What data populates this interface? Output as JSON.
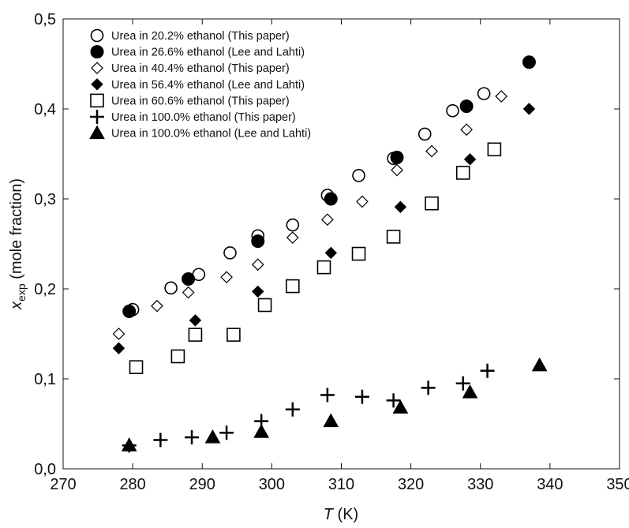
{
  "chart_data": {
    "type": "scatter",
    "xlabel": {
      "main": "T",
      "unit": " (K)"
    },
    "ylabel": {
      "main": "x",
      "sub": "exp",
      "rest": " (mole fraction)"
    },
    "xlim": [
      270,
      350
    ],
    "ylim": [
      0,
      0.5
    ],
    "xticks": [
      270,
      280,
      290,
      300,
      310,
      320,
      330,
      340,
      350
    ],
    "yticks": [
      0.0,
      0.1,
      0.2,
      0.3,
      0.4,
      0.5
    ],
    "xtick_labels": [
      "270",
      "280",
      "290",
      "300",
      "310",
      "320",
      "330",
      "340",
      "350"
    ],
    "ytick_labels": [
      "0,0",
      "0,1",
      "0,2",
      "0,3",
      "0,4",
      "0,5"
    ],
    "grid": false,
    "legend_position": "top-left",
    "series": [
      {
        "name": "Urea in 20.2% ethanol (This paper)",
        "marker": "circle-open",
        "x": [
          280.0,
          285.5,
          289.5,
          294.0,
          298.0,
          303.0,
          308.0,
          312.5,
          317.5,
          322.0,
          326.0,
          330.5
        ],
        "y": [
          0.177,
          0.201,
          0.216,
          0.24,
          0.259,
          0.271,
          0.304,
          0.326,
          0.345,
          0.372,
          0.398,
          0.417
        ]
      },
      {
        "name": "Urea in 26.6% ethanol (Lee and Lahti)",
        "marker": "circle-filled",
        "x": [
          279.5,
          288.0,
          298.0,
          308.5,
          318.0,
          328.0,
          337.0
        ],
        "y": [
          0.175,
          0.211,
          0.253,
          0.3,
          0.346,
          0.403,
          0.452
        ]
      },
      {
        "name": "Urea in 40.4% ethanol (This paper)",
        "marker": "diamond-open",
        "x": [
          278.0,
          283.5,
          288.0,
          293.5,
          298.0,
          303.0,
          308.0,
          313.0,
          318.0,
          323.0,
          328.0,
          333.0
        ],
        "y": [
          0.15,
          0.181,
          0.196,
          0.213,
          0.227,
          0.257,
          0.277,
          0.297,
          0.332,
          0.353,
          0.377,
          0.414
        ]
      },
      {
        "name": "Urea in 56.4% ethanol (Lee and Lahti)",
        "marker": "diamond-filled",
        "x": [
          278.0,
          289.0,
          298.0,
          308.5,
          318.5,
          328.5,
          337.0
        ],
        "y": [
          0.134,
          0.165,
          0.197,
          0.24,
          0.291,
          0.344,
          0.4
        ]
      },
      {
        "name": "Urea in 60.6% ethanol (This paper)",
        "marker": "square-open",
        "x": [
          280.5,
          286.5,
          289.0,
          294.5,
          299.0,
          303.0,
          307.5,
          312.5,
          317.5,
          323.0,
          327.5,
          332.0
        ],
        "y": [
          0.113,
          0.125,
          0.149,
          0.149,
          0.182,
          0.203,
          0.224,
          0.239,
          0.258,
          0.295,
          0.329,
          0.355
        ]
      },
      {
        "name": "Urea in 100.0% ethanol (This paper)",
        "marker": "plus",
        "x": [
          279.5,
          284.0,
          288.5,
          293.5,
          298.5,
          303.0,
          308.0,
          313.0,
          317.5,
          322.5,
          327.5,
          331.0
        ],
        "y": [
          0.026,
          0.032,
          0.035,
          0.04,
          0.053,
          0.066,
          0.082,
          0.08,
          0.076,
          0.09,
          0.095,
          0.109
        ]
      },
      {
        "name": "Urea in 100.0% ethanol (Lee and Lahti)",
        "marker": "triangle-filled",
        "x": [
          279.5,
          291.5,
          298.5,
          308.5,
          318.5,
          328.5,
          338.5
        ],
        "y": [
          0.026,
          0.035,
          0.041,
          0.053,
          0.068,
          0.085,
          0.115
        ]
      }
    ]
  }
}
